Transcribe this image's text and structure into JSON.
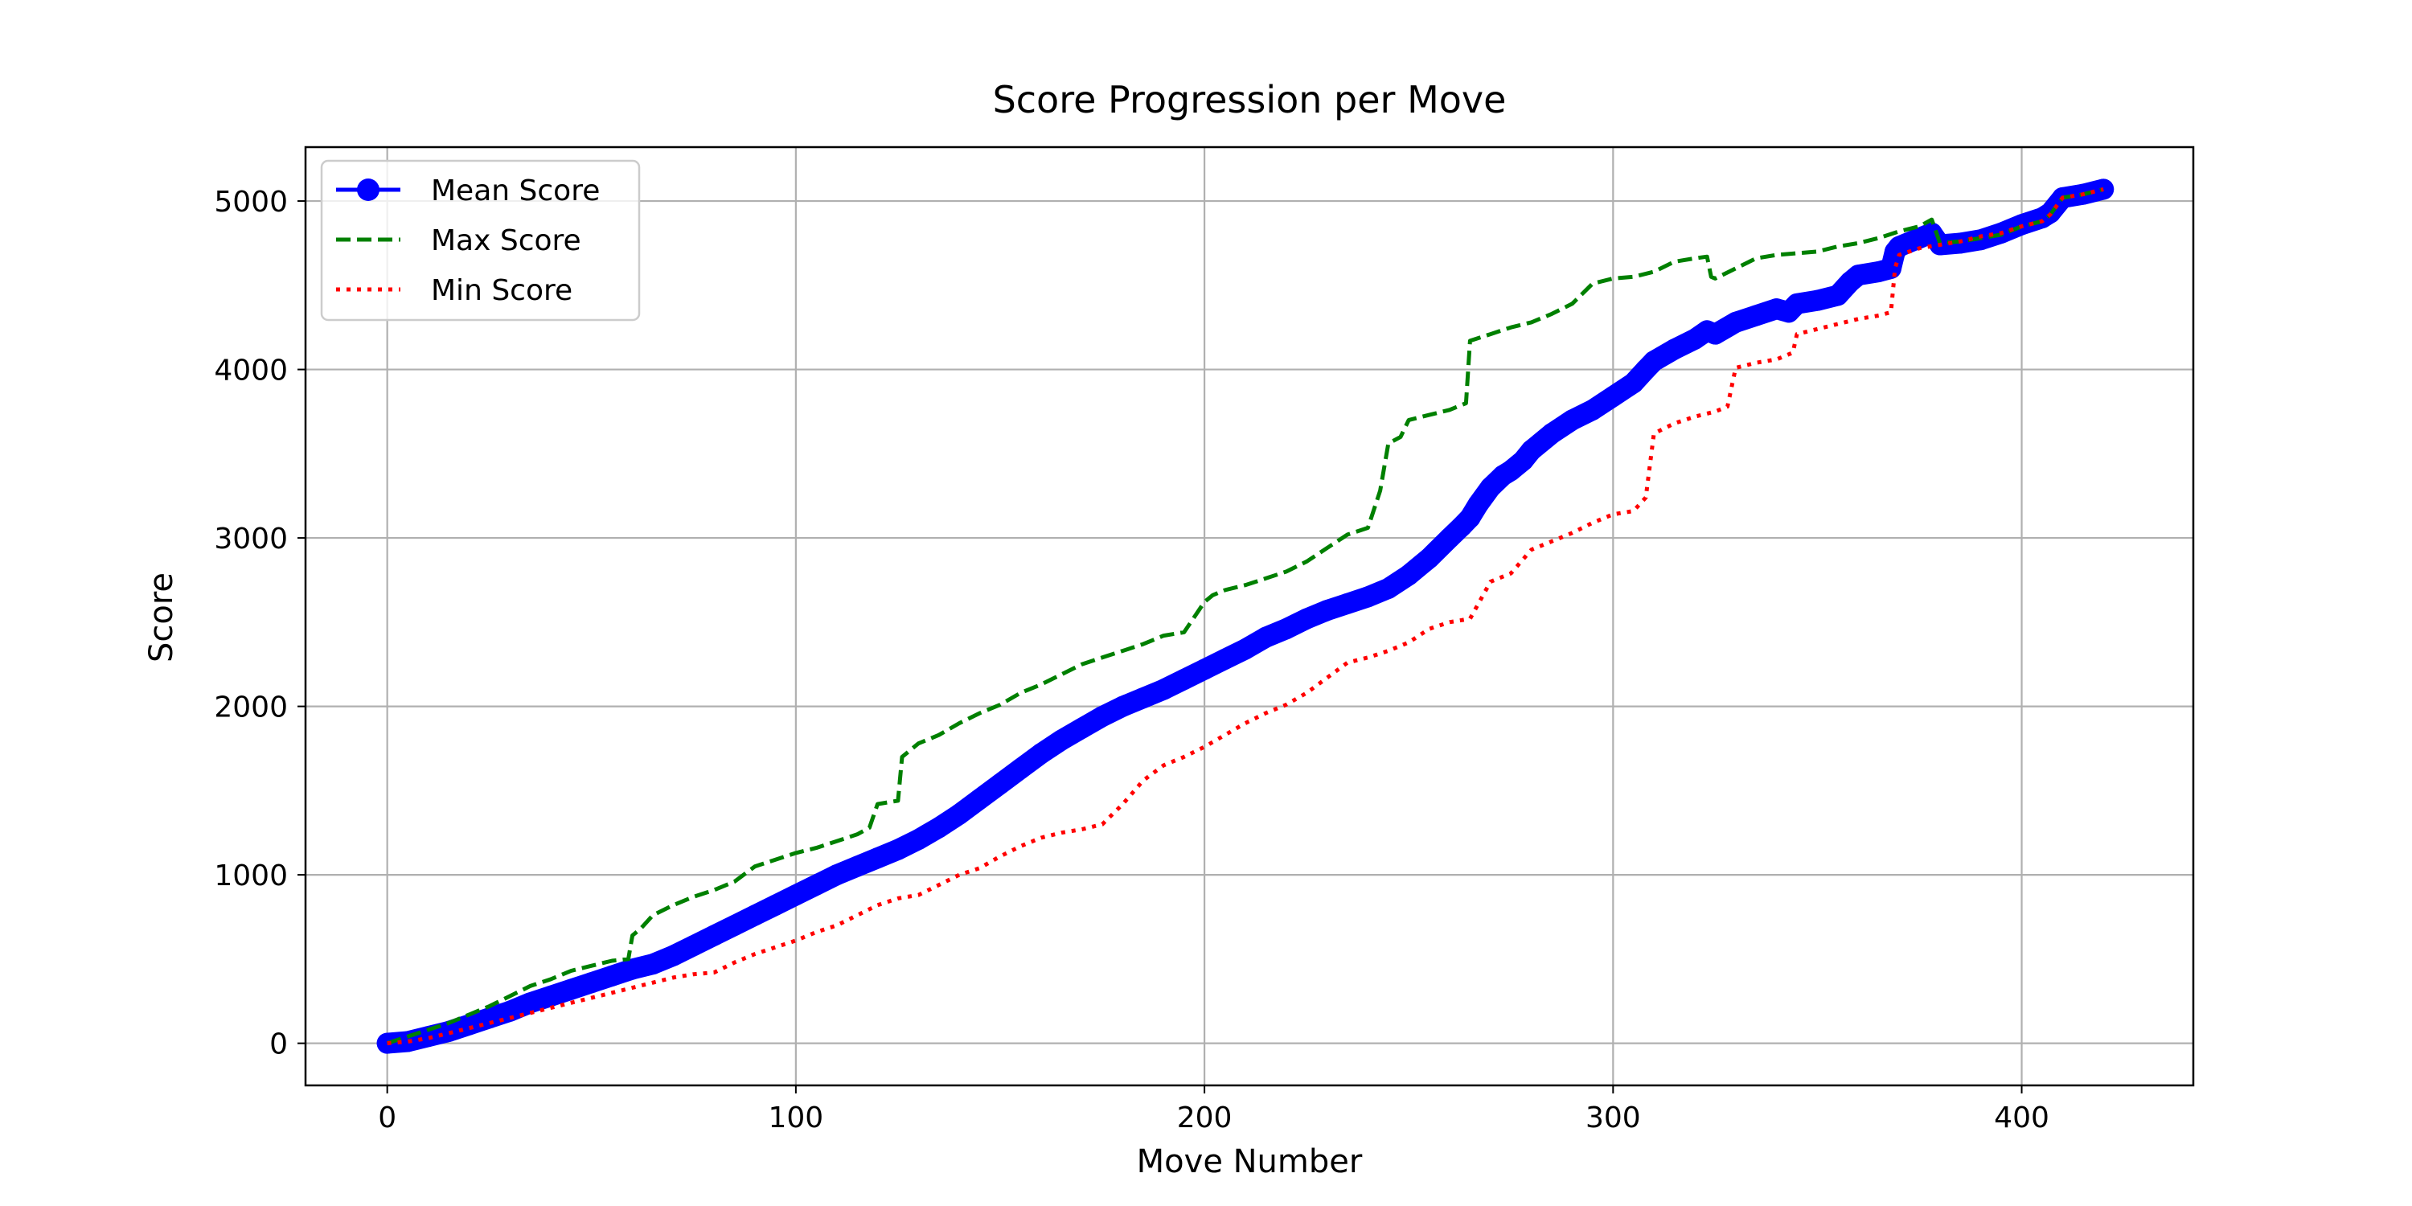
{
  "chart_data": {
    "type": "line",
    "title": "Score Progression per Move",
    "xlabel": "Move Number",
    "ylabel": "Score",
    "xlim": [
      -20,
      442
    ],
    "ylim": [
      -250,
      5320
    ],
    "xticks": [
      0,
      100,
      200,
      300,
      400
    ],
    "yticks": [
      0,
      1000,
      2000,
      3000,
      4000,
      5000
    ],
    "grid": true,
    "legend": "top-left",
    "series": [
      {
        "name": "Mean Score",
        "color": "#0000ff",
        "style": "solid-markers",
        "x": [
          0,
          5,
          10,
          15,
          20,
          25,
          30,
          35,
          40,
          45,
          50,
          55,
          60,
          65,
          70,
          75,
          80,
          85,
          90,
          95,
          100,
          105,
          110,
          115,
          120,
          125,
          130,
          135,
          140,
          145,
          150,
          155,
          160,
          165,
          170,
          175,
          180,
          185,
          190,
          195,
          200,
          205,
          210,
          215,
          220,
          225,
          230,
          235,
          240,
          245,
          250,
          255,
          260,
          263,
          265,
          267,
          270,
          273,
          275,
          278,
          280,
          285,
          290,
          295,
          300,
          305,
          308,
          310,
          315,
          320,
          323,
          325,
          330,
          335,
          340,
          343,
          345,
          350,
          355,
          358,
          360,
          365,
          368,
          369,
          370,
          375,
          378,
          380,
          385,
          390,
          395,
          400,
          405,
          407,
          410,
          415,
          420
        ],
        "y": [
          0,
          10,
          40,
          70,
          110,
          150,
          190,
          240,
          280,
          320,
          360,
          400,
          440,
          470,
          520,
          580,
          640,
          700,
          760,
          820,
          880,
          940,
          1000,
          1050,
          1100,
          1150,
          1210,
          1280,
          1360,
          1450,
          1540,
          1630,
          1720,
          1800,
          1870,
          1940,
          2000,
          2050,
          2100,
          2160,
          2220,
          2280,
          2340,
          2410,
          2460,
          2520,
          2570,
          2610,
          2650,
          2700,
          2780,
          2880,
          3000,
          3070,
          3120,
          3200,
          3300,
          3370,
          3400,
          3460,
          3520,
          3620,
          3700,
          3760,
          3840,
          3920,
          4000,
          4050,
          4120,
          4180,
          4230,
          4210,
          4280,
          4320,
          4360,
          4340,
          4390,
          4410,
          4440,
          4520,
          4560,
          4580,
          4600,
          4700,
          4730,
          4780,
          4810,
          4740,
          4750,
          4770,
          4810,
          4860,
          4900,
          4930,
          5020,
          5040,
          5070
        ]
      },
      {
        "name": "Max Score",
        "color": "#008000",
        "style": "dashed",
        "x": [
          0,
          5,
          10,
          15,
          20,
          25,
          30,
          35,
          40,
          45,
          50,
          55,
          59,
          60,
          62,
          65,
          70,
          75,
          80,
          85,
          90,
          95,
          100,
          105,
          110,
          115,
          118,
          120,
          125,
          126,
          130,
          135,
          140,
          145,
          150,
          155,
          160,
          165,
          170,
          175,
          180,
          185,
          190,
          195,
          200,
          202,
          205,
          210,
          215,
          220,
          225,
          230,
          235,
          240,
          243,
          245,
          248,
          250,
          255,
          260,
          264,
          265,
          270,
          275,
          280,
          285,
          290,
          295,
          300,
          305,
          310,
          315,
          320,
          323,
          324,
          325,
          330,
          335,
          340,
          345,
          350,
          355,
          360,
          365,
          370,
          375,
          378,
          380,
          385,
          390,
          395,
          400,
          405,
          407,
          410,
          415,
          420
        ],
        "y": [
          0,
          40,
          80,
          120,
          170,
          220,
          280,
          340,
          380,
          430,
          460,
          490,
          500,
          640,
          680,
          760,
          820,
          870,
          910,
          960,
          1050,
          1090,
          1130,
          1160,
          1200,
          1240,
          1280,
          1420,
          1440,
          1700,
          1780,
          1830,
          1900,
          1960,
          2010,
          2080,
          2130,
          2190,
          2250,
          2290,
          2330,
          2370,
          2420,
          2440,
          2620,
          2660,
          2690,
          2720,
          2760,
          2800,
          2860,
          2940,
          3020,
          3060,
          3280,
          3560,
          3600,
          3700,
          3730,
          3760,
          3800,
          4170,
          4210,
          4250,
          4280,
          4330,
          4390,
          4510,
          4540,
          4550,
          4580,
          4640,
          4660,
          4670,
          4550,
          4540,
          4600,
          4660,
          4680,
          4690,
          4700,
          4730,
          4750,
          4780,
          4820,
          4850,
          4890,
          4750,
          4760,
          4780,
          4800,
          4850,
          4880,
          4920,
          5020,
          5040,
          5070
        ]
      },
      {
        "name": "Min Score",
        "color": "#ff0000",
        "style": "dotted",
        "x": [
          0,
          5,
          10,
          15,
          20,
          25,
          30,
          35,
          40,
          45,
          50,
          55,
          60,
          65,
          70,
          75,
          80,
          85,
          90,
          95,
          100,
          105,
          110,
          115,
          120,
          125,
          130,
          135,
          140,
          145,
          150,
          155,
          160,
          165,
          170,
          175,
          180,
          185,
          190,
          195,
          200,
          205,
          210,
          215,
          220,
          225,
          230,
          235,
          240,
          245,
          250,
          255,
          260,
          265,
          270,
          275,
          280,
          285,
          290,
          295,
          300,
          305,
          308,
          310,
          315,
          320,
          325,
          328,
          330,
          335,
          340,
          344,
          345,
          350,
          355,
          360,
          365,
          368,
          369,
          370,
          375,
          380,
          385,
          390,
          395,
          400,
          405,
          407,
          410,
          415,
          420
        ],
        "y": [
          0,
          10,
          30,
          60,
          90,
          120,
          150,
          180,
          210,
          240,
          270,
          300,
          330,
          360,
          390,
          410,
          420,
          480,
          530,
          570,
          610,
          660,
          700,
          760,
          820,
          860,
          880,
          940,
          1000,
          1040,
          1110,
          1170,
          1220,
          1250,
          1270,
          1300,
          1420,
          1560,
          1650,
          1700,
          1760,
          1830,
          1900,
          1960,
          2010,
          2080,
          2170,
          2260,
          2290,
          2330,
          2380,
          2460,
          2500,
          2520,
          2740,
          2790,
          2930,
          2980,
          3030,
          3090,
          3140,
          3160,
          3240,
          3620,
          3680,
          3720,
          3750,
          3780,
          4010,
          4040,
          4060,
          4100,
          4210,
          4240,
          4270,
          4300,
          4320,
          4340,
          4600,
          4680,
          4720,
          4740,
          4760,
          4790,
          4810,
          4850,
          4880,
          4920,
          5020,
          5040,
          5070
        ]
      }
    ]
  }
}
